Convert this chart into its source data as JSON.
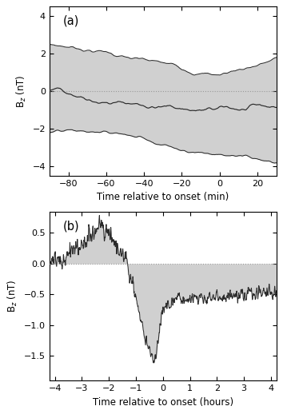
{
  "panel_a": {
    "label": "(a)",
    "xlabel": "Time relative to onset (min)",
    "ylabel": "B$_z$ (nT)",
    "xlim": [
      -90,
      30
    ],
    "ylim": [
      -4.5,
      4.5
    ],
    "xticks": [
      -80,
      -60,
      -40,
      -20,
      0,
      20
    ],
    "yticks": [
      -4,
      -2,
      0,
      2,
      4
    ]
  },
  "panel_b": {
    "label": "(b)",
    "xlabel": "Time relative to onset (hours)",
    "ylabel": "B$_z$ (nT)",
    "xlim": [
      -4.2,
      4.2
    ],
    "ylim": [
      -1.9,
      0.85
    ],
    "xticks": [
      -4,
      -3,
      -2,
      -1,
      0,
      1,
      2,
      3,
      4
    ],
    "yticks": [
      -1.5,
      -1.0,
      -0.5,
      0.0,
      0.5
    ]
  },
  "shading_color": "#d0d0d0",
  "line_color": "#2a2a2a",
  "dotted_color": "#999999",
  "bg_color": "#ffffff"
}
